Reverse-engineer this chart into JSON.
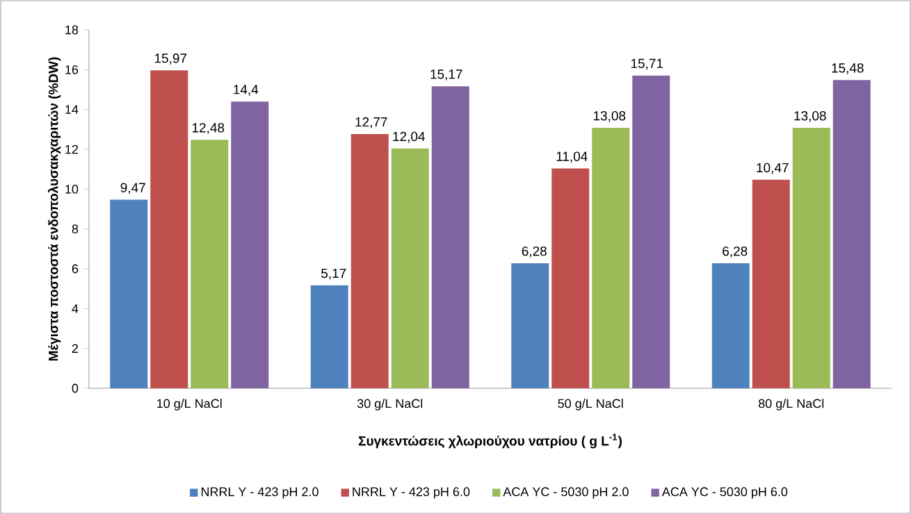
{
  "chart_data": {
    "type": "bar",
    "xlabel": "Συγκεντώσεις χλωριούχου νατρίου ( g L$^{-1}$)",
    "ylabel": "Μέγιστα ποστοστά ενδοπολυσακχαριτών (%DW)",
    "categories": [
      "10 g/L NaCl",
      "30 g/L NaCl",
      "50 g/L NaCl",
      "80 g/L NaCl"
    ],
    "series": [
      {
        "name": "NRRL Y - 423 pH 2.0",
        "color": "#4f81bd",
        "values": [
          9.47,
          5.17,
          6.28,
          6.28
        ],
        "value_labels": [
          "9,47",
          "5,17",
          "6,28",
          "6,28"
        ]
      },
      {
        "name": "NRRL Y - 423 pH 6.0",
        "color": "#c0504d",
        "values": [
          15.97,
          12.77,
          11.04,
          10.47
        ],
        "value_labels": [
          "15,97",
          "12,77",
          "11,04",
          "10,47"
        ]
      },
      {
        "name": "ACA YC - 5030 pH 2.0",
        "color": "#9bbb59",
        "values": [
          12.48,
          12.04,
          13.08,
          13.08
        ],
        "value_labels": [
          "12,48",
          "12,04",
          "13,08",
          "13,08"
        ]
      },
      {
        "name": "ACA YC - 5030 pH 6.0",
        "color": "#8064a2",
        "values": [
          14.4,
          15.17,
          15.71,
          15.48
        ],
        "value_labels": [
          "14,4",
          "15,17",
          "15,71",
          "15,48"
        ]
      }
    ],
    "ylim": [
      0,
      18
    ],
    "yticks": [
      0,
      2,
      4,
      6,
      8,
      10,
      12,
      14,
      16,
      18
    ],
    "grid": false,
    "legend": "bottom"
  }
}
